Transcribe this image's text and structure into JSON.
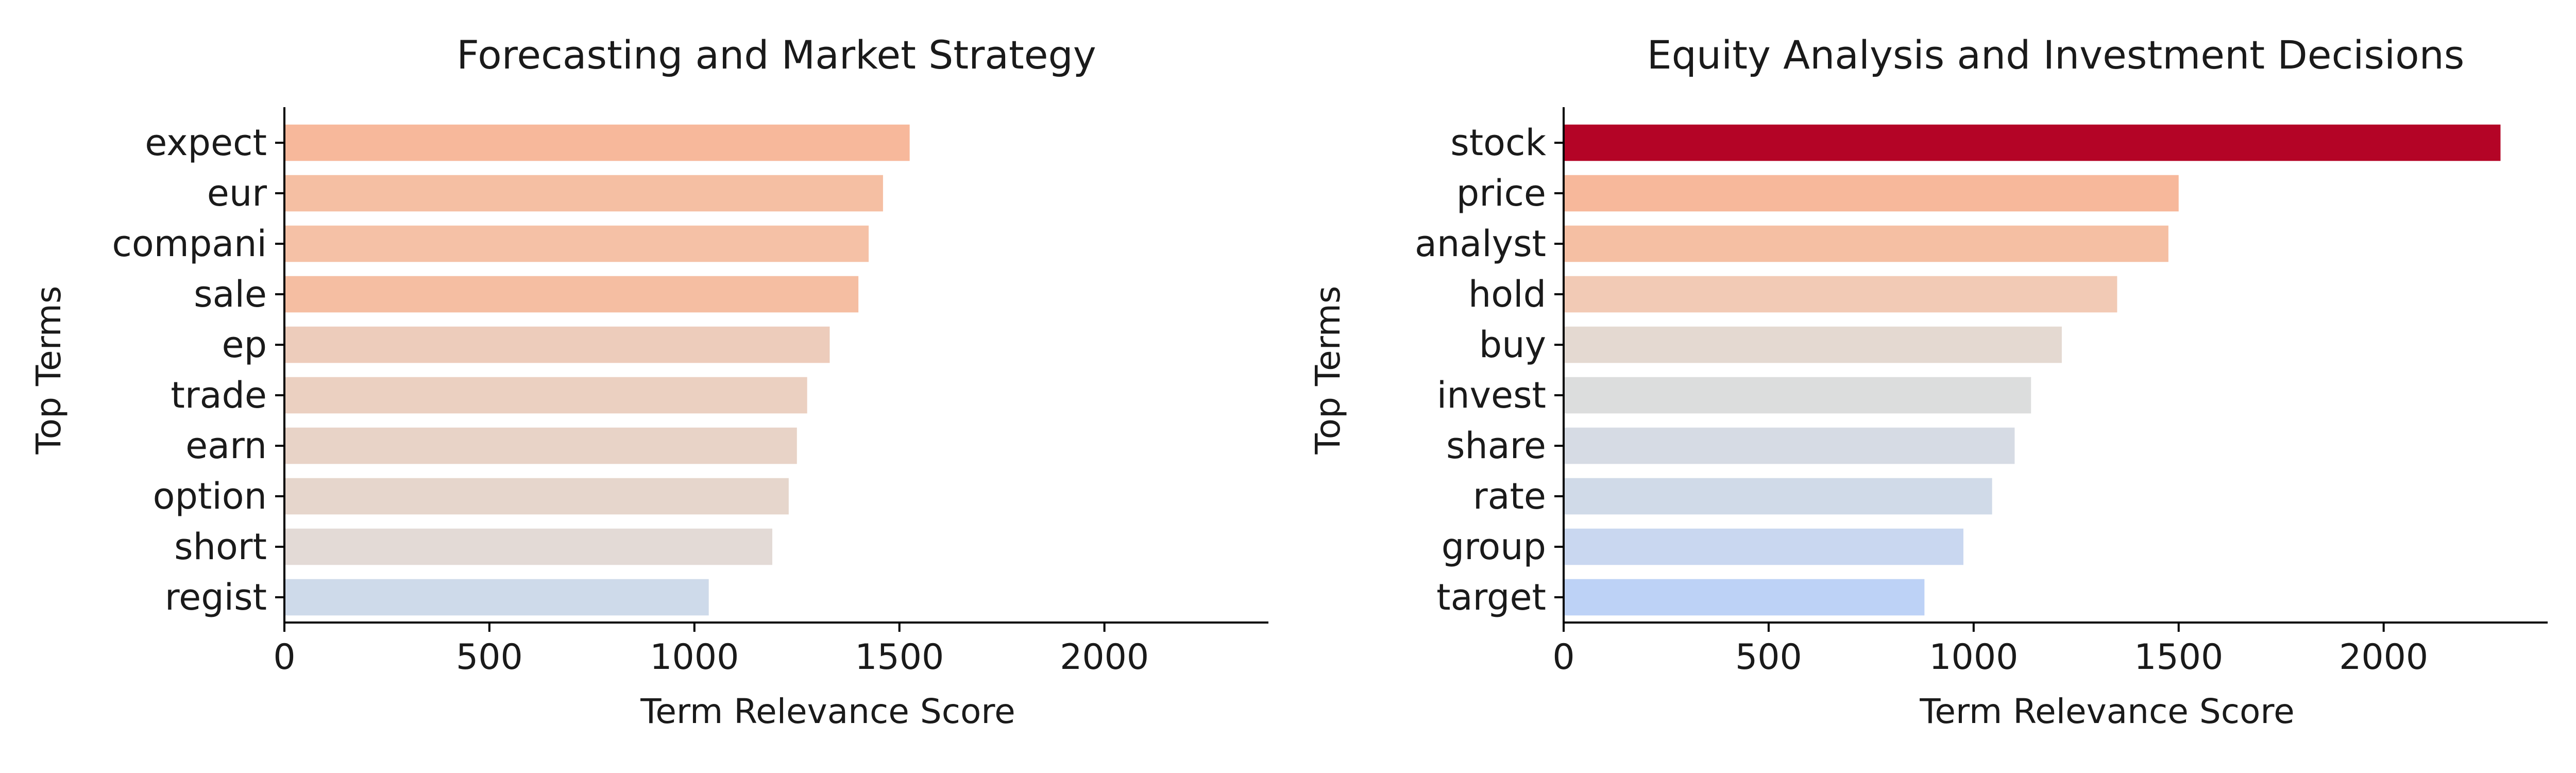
{
  "chart_data": [
    {
      "type": "bar",
      "orientation": "horizontal",
      "title": "Forecasting and Market Strategy",
      "xlabel": "Term Relevance Score",
      "ylabel": "Top Terms",
      "xlim": [
        0,
        2400
      ],
      "xticks": [
        "0",
        "500",
        "1000",
        "1500",
        "2000"
      ],
      "categories": [
        "expect",
        "eur",
        "compani",
        "sale",
        "ep",
        "trade",
        "earn",
        "option",
        "short",
        "regist"
      ],
      "values": [
        1525,
        1460,
        1425,
        1400,
        1330,
        1275,
        1250,
        1230,
        1190,
        1035
      ],
      "colors": [
        "#f7b89b",
        "#f5bfa3",
        "#f5c1a6",
        "#f5bea2",
        "#edccbb",
        "#ebd0c1",
        "#e8d3c7",
        "#e6d6cc",
        "#e3dad6",
        "#cedaea"
      ],
      "grid": false,
      "legend": "none"
    },
    {
      "type": "bar",
      "orientation": "horizontal",
      "title": "Equity Analysis and Investment Decisions",
      "xlabel": "Term Relevance Score",
      "ylabel": "Top Terms",
      "xlim": [
        0,
        2400
      ],
      "xticks": [
        "0",
        "500",
        "1000",
        "1500",
        "2000"
      ],
      "categories": [
        "stock",
        "price",
        "analyst",
        "hold",
        "buy",
        "invest",
        "share",
        "rate",
        "group",
        "target"
      ],
      "values": [
        2285,
        1500,
        1475,
        1350,
        1215,
        1140,
        1100,
        1045,
        975,
        880
      ],
      "colors": [
        "#b40426",
        "#f7b89b",
        "#f5bfa3",
        "#f2cab5",
        "#e4d9d1",
        "#dcdddd",
        "#d6dbe4",
        "#d0dae8",
        "#c9d7f0",
        "#bdd2f6"
      ],
      "grid": false,
      "legend": "none"
    }
  ]
}
